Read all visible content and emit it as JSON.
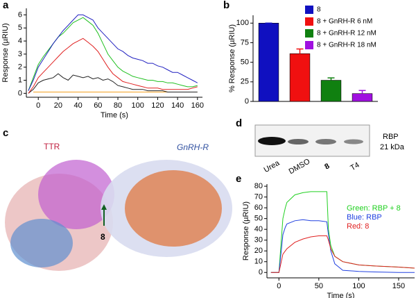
{
  "panel_labels": [
    "a",
    "b",
    "c",
    "d",
    "e"
  ],
  "chart_data": [
    {
      "type": "line",
      "xlabel": "Time (s)",
      "ylabel": "Response (µRIU)",
      "x": [
        -10,
        -5,
        0,
        5,
        10,
        15,
        20,
        25,
        30,
        35,
        40,
        45,
        50,
        55,
        60,
        65,
        70,
        75,
        80,
        85,
        90,
        95,
        100,
        105,
        110,
        115,
        120,
        125,
        130,
        135,
        140,
        145,
        150,
        155,
        160
      ],
      "xlim": [
        -12,
        165
      ],
      "xticks": [
        0,
        20,
        40,
        60,
        80,
        100,
        120,
        140,
        160
      ],
      "ylim": [
        -0.3,
        6.5
      ],
      "yticks": [
        0,
        1,
        2,
        3,
        4,
        5,
        6
      ],
      "series": [
        {
          "color": "#f4a020",
          "values": [
            null,
            0.1,
            0.1,
            0.1,
            0.1,
            0.1,
            0.1,
            0.1,
            0.1,
            0.1,
            0.1,
            0.1,
            0.1,
            0.1,
            0.1,
            0.1,
            0.1,
            0.1,
            0.1,
            0.1,
            0.1,
            0.1,
            0.1,
            0.1,
            0.1,
            0.1,
            0.1,
            0.1,
            0.1,
            0.1,
            0.1,
            0.1,
            0.1,
            0.1,
            0.1
          ]
        },
        {
          "color": "#222222",
          "values": [
            0,
            0.3,
            0.8,
            1.0,
            1.1,
            1.2,
            1.5,
            1.2,
            1.0,
            1.4,
            1.3,
            1.2,
            1.3,
            1.1,
            1.2,
            1.0,
            1.1,
            0.9,
            0.6,
            0.5,
            0.4,
            0.3,
            0.3,
            0.3,
            0.2,
            0.2,
            0.2,
            0.2,
            0.1,
            0.1,
            0.1,
            0.1,
            0.1,
            0.1,
            0.1
          ]
        },
        {
          "color": "#e02020",
          "values": [
            0,
            0.5,
            1.2,
            1.6,
            2.0,
            2.4,
            2.8,
            3.2,
            3.5,
            3.8,
            4.0,
            4.2,
            3.9,
            3.6,
            3.2,
            2.6,
            2.0,
            1.5,
            1.2,
            0.9,
            0.8,
            0.7,
            0.6,
            0.5,
            0.4,
            0.4,
            0.4,
            0.3,
            0.3,
            0.3,
            0.3,
            0.3,
            0.3,
            0.4,
            0.5
          ]
        },
        {
          "color": "#20c020",
          "values": [
            0.2,
            1.2,
            2.2,
            2.8,
            3.3,
            3.8,
            4.3,
            4.6,
            5.0,
            5.4,
            5.6,
            5.8,
            5.5,
            5.2,
            4.6,
            3.8,
            3.0,
            2.5,
            2.0,
            1.7,
            1.5,
            1.3,
            1.2,
            1.1,
            1.0,
            1.0,
            0.9,
            0.9,
            0.8,
            0.8,
            0.7,
            0.6,
            0.5,
            0.5,
            0.6
          ]
        },
        {
          "color": "#2020c0",
          "values": [
            0.2,
            1.0,
            2.0,
            2.6,
            3.2,
            3.8,
            4.3,
            4.8,
            5.2,
            5.6,
            6.0,
            6.0,
            5.8,
            5.6,
            5.0,
            4.6,
            4.2,
            3.8,
            3.4,
            3.2,
            2.9,
            2.7,
            2.6,
            2.5,
            2.3,
            2.3,
            2.1,
            2.0,
            1.8,
            1.6,
            1.6,
            1.4,
            1.2,
            1.0,
            0.8
          ]
        }
      ]
    },
    {
      "type": "bar",
      "ylabel": "% Response (µRIU)",
      "categories": [
        "8",
        "8 + GnRH-R 6 nM",
        "8 + GnRH-R 12 nM",
        "8 + GnRH-R 18 nM"
      ],
      "values": [
        100,
        61,
        27,
        10
      ],
      "errors": [
        0,
        6,
        3,
        4
      ],
      "colors": [
        "#1010c0",
        "#f01010",
        "#108010",
        "#a010e0"
      ],
      "ylim": [
        0,
        110
      ],
      "yticks": [
        0,
        25,
        50,
        75,
        100
      ]
    },
    {
      "type": "line",
      "xlabel": "Time (s)",
      "ylabel": "Response (µRIU)",
      "x": [
        -10,
        0,
        3,
        5,
        8,
        10,
        20,
        30,
        40,
        50,
        60,
        62,
        65,
        70,
        80,
        100,
        120,
        150,
        170
      ],
      "xlim": [
        -15,
        170
      ],
      "xticks": [
        0,
        50,
        100,
        150
      ],
      "ylim": [
        -5,
        82
      ],
      "yticks": [
        0,
        10,
        20,
        30,
        40,
        50,
        60,
        70,
        80
      ],
      "series": [
        {
          "name": "Green: RBP + 8",
          "color": "#20d020",
          "values": [
            0,
            0,
            30,
            50,
            60,
            65,
            72,
            74,
            75,
            75,
            75,
            40,
            25,
            15,
            10,
            7,
            6,
            5,
            4
          ]
        },
        {
          "name": "Blue: RBP",
          "color": "#2040e0",
          "values": [
            0,
            0,
            20,
            35,
            42,
            45,
            48,
            49,
            48,
            48,
            47,
            35,
            20,
            8,
            2,
            1,
            0.5,
            0,
            0
          ]
        },
        {
          "name": "Red: 8",
          "color": "#e02020",
          "values": [
            0,
            0,
            10,
            17,
            20,
            22,
            28,
            31,
            33,
            34,
            34,
            30,
            22,
            15,
            10,
            7,
            6,
            5,
            4
          ]
        }
      ]
    }
  ],
  "panel_c": {
    "labels": [
      "TTR",
      "GnRH-R",
      "8"
    ]
  },
  "panel_d": {
    "lanes": [
      "Urea",
      "DMSO",
      "8",
      "T4"
    ],
    "marker": "RBP",
    "size": "21 kDa"
  }
}
